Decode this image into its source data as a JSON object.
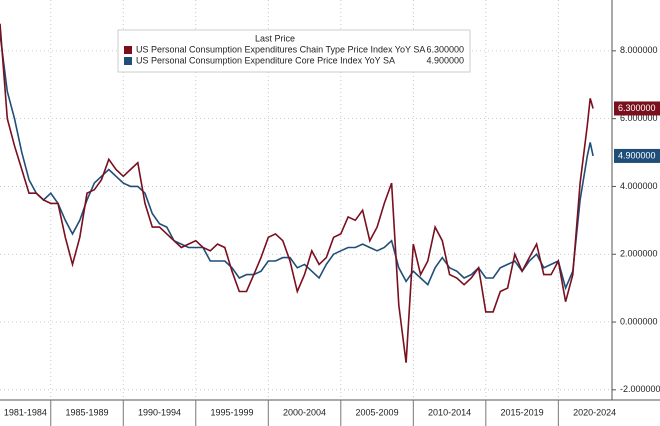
{
  "chart_data": {
    "type": "line",
    "legend_title": "Last Price",
    "x": [
      1981.5,
      1982.0,
      1982.5,
      1983.0,
      1983.5,
      1984.0,
      1984.5,
      1985.0,
      1985.5,
      1986.0,
      1986.5,
      1987.0,
      1987.5,
      1988.0,
      1988.5,
      1989.0,
      1989.5,
      1990.0,
      1990.5,
      1991.0,
      1991.5,
      1992.0,
      1992.5,
      1993.0,
      1993.5,
      1994.0,
      1994.5,
      1995.0,
      1995.5,
      1996.0,
      1996.5,
      1997.0,
      1997.5,
      1998.0,
      1998.5,
      1999.0,
      1999.5,
      2000.0,
      2000.5,
      2001.0,
      2001.5,
      2002.0,
      2002.5,
      2003.0,
      2003.5,
      2004.0,
      2004.5,
      2005.0,
      2005.5,
      2006.0,
      2006.5,
      2007.0,
      2007.5,
      2008.0,
      2008.5,
      2009.0,
      2009.5,
      2010.0,
      2010.5,
      2011.0,
      2011.5,
      2012.0,
      2012.5,
      2013.0,
      2013.5,
      2014.0,
      2014.5,
      2015.0,
      2015.5,
      2016.0,
      2016.5,
      2017.0,
      2017.5,
      2018.0,
      2018.5,
      2019.0,
      2019.5,
      2020.0,
      2020.5,
      2021.0,
      2021.5,
      2022.0,
      2022.2,
      2022.4
    ],
    "series": [
      {
        "name": "US Personal Consumption Expenditures Chain Type Price Index YoY SA",
        "color": "#7a0f1e",
        "last_value": 6.3,
        "last_value_label": "6.300000",
        "values": [
          8.8,
          6.0,
          5.2,
          4.5,
          3.8,
          3.8,
          3.6,
          3.5,
          3.5,
          2.5,
          1.7,
          2.5,
          3.8,
          3.9,
          4.2,
          4.8,
          4.5,
          4.3,
          4.5,
          4.7,
          3.5,
          2.8,
          2.8,
          2.6,
          2.4,
          2.2,
          2.3,
          2.4,
          2.2,
          2.1,
          2.3,
          2.2,
          1.5,
          0.9,
          0.9,
          1.4,
          1.9,
          2.5,
          2.6,
          2.4,
          1.8,
          0.9,
          1.4,
          2.1,
          1.7,
          1.9,
          2.5,
          2.6,
          3.1,
          3.0,
          3.3,
          2.4,
          2.8,
          3.5,
          4.1,
          0.5,
          -1.2,
          2.3,
          1.4,
          1.8,
          2.8,
          2.4,
          1.4,
          1.3,
          1.1,
          1.3,
          1.6,
          0.3,
          0.3,
          0.9,
          1.0,
          2.0,
          1.5,
          1.9,
          2.3,
          1.4,
          1.4,
          1.8,
          0.6,
          1.4,
          4.1,
          5.8,
          6.6,
          6.3
        ]
      },
      {
        "name": "US Personal Consumption Expenditure Core Price Index YoY SA",
        "color": "#1f4e79",
        "last_value": 4.9,
        "last_value_label": "4.900000",
        "values": [
          8.5,
          6.8,
          6.0,
          5.0,
          4.2,
          3.8,
          3.6,
          3.8,
          3.5,
          3.0,
          2.6,
          3.0,
          3.6,
          4.1,
          4.3,
          4.5,
          4.3,
          4.1,
          4.0,
          4.0,
          3.8,
          3.2,
          2.9,
          2.8,
          2.4,
          2.3,
          2.2,
          2.2,
          2.2,
          1.8,
          1.8,
          1.8,
          1.6,
          1.3,
          1.4,
          1.4,
          1.5,
          1.8,
          1.8,
          1.9,
          1.9,
          1.6,
          1.7,
          1.5,
          1.3,
          1.7,
          2.0,
          2.1,
          2.2,
          2.2,
          2.3,
          2.2,
          2.1,
          2.2,
          2.4,
          1.6,
          1.2,
          1.5,
          1.3,
          1.1,
          1.6,
          1.9,
          1.6,
          1.5,
          1.3,
          1.4,
          1.6,
          1.3,
          1.3,
          1.6,
          1.7,
          1.8,
          1.5,
          1.8,
          2.0,
          1.6,
          1.7,
          1.8,
          1.0,
          1.5,
          3.6,
          4.9,
          5.3,
          4.9
        ]
      }
    ],
    "periods": [
      {
        "start": 1981,
        "end": 1985,
        "label": "1981-1984"
      },
      {
        "start": 1985,
        "end": 1990,
        "label": "1985-1989"
      },
      {
        "start": 1990,
        "end": 1995,
        "label": "1990-1994"
      },
      {
        "start": 1995,
        "end": 2000,
        "label": "1995-1999"
      },
      {
        "start": 2000,
        "end": 2005,
        "label": "2000-2004"
      },
      {
        "start": 2005,
        "end": 2010,
        "label": "2005-2009"
      },
      {
        "start": 2010,
        "end": 2015,
        "label": "2010-2014"
      },
      {
        "start": 2015,
        "end": 2020,
        "label": "2015-2019"
      },
      {
        "start": 2020,
        "end": 2025,
        "label": "2020-2024"
      }
    ],
    "xlim": [
      1981.5,
      2023.7
    ],
    "ylim": [
      -2.3,
      9.5
    ],
    "yticks": [
      {
        "value": -2,
        "label": "-2.000000"
      },
      {
        "value": 0,
        "label": "0.000000"
      },
      {
        "value": 2,
        "label": "2.000000"
      },
      {
        "value": 4,
        "label": "4.000000"
      },
      {
        "value": 6,
        "label": "6.000000"
      },
      {
        "value": 8,
        "label": "8.000000"
      }
    ],
    "grid": true
  }
}
